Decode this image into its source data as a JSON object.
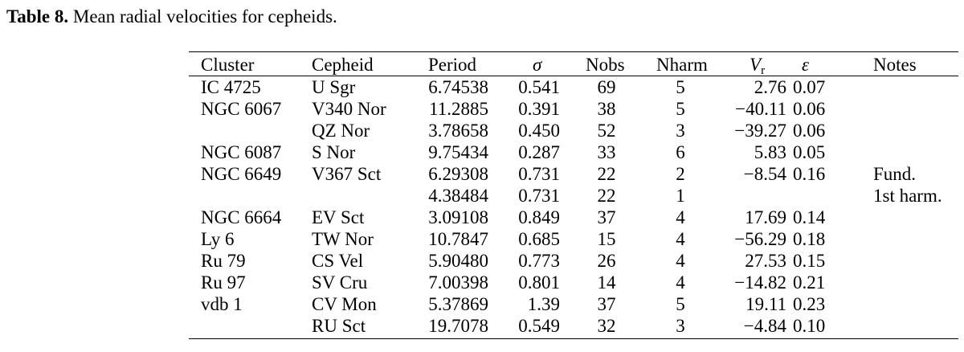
{
  "caption": {
    "label": "Table 8.",
    "text": " Mean radial velocities for cepheids."
  },
  "columns": {
    "cluster": "Cluster",
    "cepheid": "Cepheid",
    "period": "Period",
    "sigma": "σ",
    "nobs": "Nobs",
    "nharm": "Nharm",
    "vr_main": "V",
    "vr_sub": "r",
    "epsilon": "ε",
    "notes": "Notes"
  },
  "rows": [
    {
      "cluster": "IC 4725",
      "cepheid": "U Sgr",
      "period": "6.74538",
      "sigma": "0.541",
      "nobs": "69",
      "nharm": "5",
      "vr": "2.76",
      "eps": "0.07",
      "notes": ""
    },
    {
      "cluster": "NGC 6067",
      "cepheid": "V340 Nor",
      "period": "11.2885",
      "sigma": "0.391",
      "nobs": "38",
      "nharm": "5",
      "vr": "−40.11",
      "eps": "0.06",
      "notes": ""
    },
    {
      "cluster": "",
      "cepheid": "QZ Nor",
      "period": "3.78658",
      "sigma": "0.450",
      "nobs": "52",
      "nharm": "3",
      "vr": "−39.27",
      "eps": "0.06",
      "notes": ""
    },
    {
      "cluster": "NGC 6087",
      "cepheid": "S Nor",
      "period": "9.75434",
      "sigma": "0.287",
      "nobs": "33",
      "nharm": "6",
      "vr": "5.83",
      "eps": "0.05",
      "notes": ""
    },
    {
      "cluster": "NGC 6649",
      "cepheid": "V367 Sct",
      "period": "6.29308",
      "sigma": "0.731",
      "nobs": "22",
      "nharm": "2",
      "vr": "−8.54",
      "eps": "0.16",
      "notes": "Fund."
    },
    {
      "cluster": "",
      "cepheid": "",
      "period": "4.38484",
      "sigma": "0.731",
      "nobs": "22",
      "nharm": "1",
      "vr": "",
      "eps": "",
      "notes": "1st harm."
    },
    {
      "cluster": "NGC 6664",
      "cepheid": "EV Sct",
      "period": "3.09108",
      "sigma": "0.849",
      "nobs": "37",
      "nharm": "4",
      "vr": "17.69",
      "eps": "0.14",
      "notes": ""
    },
    {
      "cluster": "Ly 6",
      "cepheid": "TW Nor",
      "period": "10.7847",
      "sigma": "0.685",
      "nobs": "15",
      "nharm": "4",
      "vr": "−56.29",
      "eps": "0.18",
      "notes": ""
    },
    {
      "cluster": "Ru 79",
      "cepheid": "CS Vel",
      "period": "5.90480",
      "sigma": "0.773",
      "nobs": "26",
      "nharm": "4",
      "vr": "27.53",
      "eps": "0.15",
      "notes": ""
    },
    {
      "cluster": "Ru 97",
      "cepheid": "SV Cru",
      "period": "7.00398",
      "sigma": "0.801",
      "nobs": "14",
      "nharm": "4",
      "vr": "−14.82",
      "eps": "0.21",
      "notes": ""
    },
    {
      "cluster": "vdb 1",
      "cepheid": "CV Mon",
      "period": "5.37869",
      "sigma": "1.39",
      "nobs": "37",
      "nharm": "5",
      "vr": "19.11",
      "eps": "0.23",
      "notes": ""
    },
    {
      "cluster": "",
      "cepheid": "RU Sct",
      "period": "19.7078",
      "sigma": "0.549",
      "nobs": "32",
      "nharm": "3",
      "vr": "−4.84",
      "eps": "0.10",
      "notes": ""
    }
  ]
}
